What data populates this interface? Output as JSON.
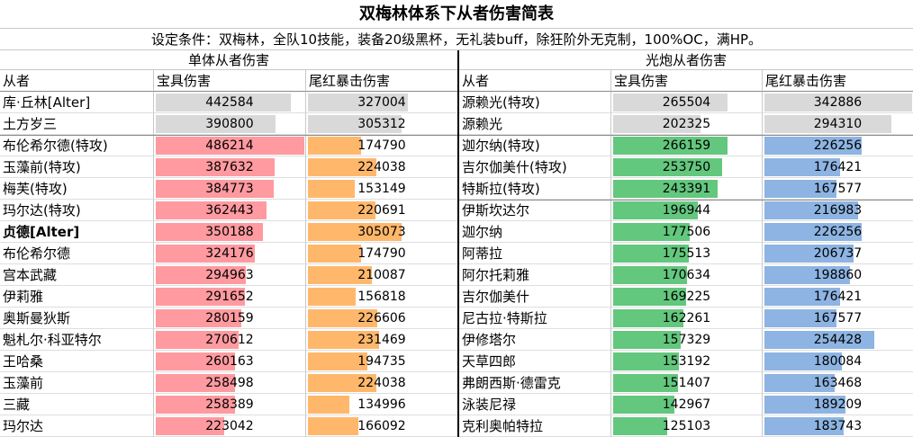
{
  "title": "双梅林体系下从者伤害简表",
  "subtitle": "设定条件：双梅林，全队10技能，装备20级黑杯，无礼装buff，除狂阶外无克制，100%OC，满HP。",
  "colors": {
    "gray": "#d9d9d9",
    "pink": "#ff9aa0",
    "orange": "#ffb86b",
    "green": "#63c77e",
    "blue": "#8db4e2"
  },
  "left": {
    "group_title": "单体从者伤害",
    "headers": [
      "从者",
      "宝具伤害",
      "尾红暴击伤害"
    ],
    "rows": [
      {
        "name": "库·丘林[Alter]",
        "np": 442584,
        "crit": 327004,
        "np_color": "gray",
        "crit_color": "gray",
        "bold": false
      },
      {
        "name": "土方岁三",
        "np": 390800,
        "crit": 305312,
        "np_color": "gray",
        "crit_color": "gray",
        "bold": false
      },
      {
        "name": "布伦希尔德(特攻)",
        "np": 486214,
        "crit": 174790,
        "np_color": "pink",
        "crit_color": "orange",
        "bold": false
      },
      {
        "name": "玉藻前(特攻)",
        "np": 387632,
        "crit": 224038,
        "np_color": "pink",
        "crit_color": "orange",
        "bold": false
      },
      {
        "name": "梅芙(特攻)",
        "np": 384773,
        "crit": 153149,
        "np_color": "pink",
        "crit_color": "orange",
        "bold": false
      },
      {
        "name": "玛尔达(特攻)",
        "np": 362443,
        "crit": 220691,
        "np_color": "pink",
        "crit_color": "orange",
        "bold": false
      },
      {
        "name": "贞德[Alter]",
        "np": 350188,
        "crit": 305073,
        "np_color": "pink",
        "crit_color": "orange",
        "bold": true
      },
      {
        "name": "布伦希尔德",
        "np": 324176,
        "crit": 174790,
        "np_color": "pink",
        "crit_color": "orange",
        "bold": false
      },
      {
        "name": "宫本武藏",
        "np": 294963,
        "crit": 210087,
        "np_color": "pink",
        "crit_color": "orange",
        "bold": false
      },
      {
        "name": "伊莉雅",
        "np": 291652,
        "crit": 156818,
        "np_color": "pink",
        "crit_color": "orange",
        "bold": false
      },
      {
        "name": "奥斯曼狄斯",
        "np": 280159,
        "crit": 226606,
        "np_color": "pink",
        "crit_color": "orange",
        "bold": false
      },
      {
        "name": "魁札尔·科亚特尔",
        "np": 270612,
        "crit": 231469,
        "np_color": "pink",
        "crit_color": "orange",
        "bold": false
      },
      {
        "name": "王哈桑",
        "np": 260163,
        "crit": 194735,
        "np_color": "pink",
        "crit_color": "orange",
        "bold": false
      },
      {
        "name": "玉藻前",
        "np": 258498,
        "crit": 224038,
        "np_color": "pink",
        "crit_color": "orange",
        "bold": false
      },
      {
        "name": "三藏",
        "np": 258389,
        "crit": 134996,
        "np_color": "pink",
        "crit_color": "orange",
        "bold": false
      },
      {
        "name": "玛尔达",
        "np": 223042,
        "crit": 166092,
        "np_color": "pink",
        "crit_color": "orange",
        "bold": false
      }
    ]
  },
  "right": {
    "group_title": "光炮从者伤害",
    "headers": [
      "从者",
      "宝具伤害",
      "尾红暴击伤害"
    ],
    "rows": [
      {
        "name": "源赖光(特攻)",
        "np": 265504,
        "crit": 342886,
        "np_color": "gray",
        "crit_color": "gray"
      },
      {
        "name": "源赖光",
        "np": 202325,
        "crit": 294310,
        "np_color": "gray",
        "crit_color": "gray"
      },
      {
        "name": "迦尔纳(特攻)",
        "np": 266159,
        "crit": 226256,
        "np_color": "green",
        "crit_color": "blue"
      },
      {
        "name": "吉尔伽美什(特攻)",
        "np": 253750,
        "crit": 176421,
        "np_color": "green",
        "crit_color": "blue"
      },
      {
        "name": "特斯拉(特攻)",
        "np": 243391,
        "crit": 167577,
        "np_color": "green",
        "crit_color": "blue"
      },
      {
        "name": "伊斯坎达尔",
        "np": 196944,
        "crit": 216983,
        "np_color": "green",
        "crit_color": "blue"
      },
      {
        "name": "迦尔纳",
        "np": 177506,
        "crit": 226256,
        "np_color": "green",
        "crit_color": "blue"
      },
      {
        "name": "阿蒂拉",
        "np": 175513,
        "crit": 206737,
        "np_color": "green",
        "crit_color": "blue"
      },
      {
        "name": "阿尔托莉雅",
        "np": 170634,
        "crit": 198860,
        "np_color": "green",
        "crit_color": "blue"
      },
      {
        "name": "吉尔伽美什",
        "np": 169225,
        "crit": 176421,
        "np_color": "green",
        "crit_color": "blue"
      },
      {
        "name": "尼古拉·特斯拉",
        "np": 162261,
        "crit": 167577,
        "np_color": "green",
        "crit_color": "blue"
      },
      {
        "name": "伊修塔尔",
        "np": 157329,
        "crit": 254428,
        "np_color": "green",
        "crit_color": "blue"
      },
      {
        "name": "天草四郎",
        "np": 153192,
        "crit": 180084,
        "np_color": "green",
        "crit_color": "blue"
      },
      {
        "name": "弗朗西斯·德雷克",
        "np": 151407,
        "crit": 163468,
        "np_color": "green",
        "crit_color": "blue"
      },
      {
        "name": "泳装尼禄",
        "np": 142967,
        "crit": 189209,
        "np_color": "green",
        "crit_color": "blue"
      },
      {
        "name": "克利奥帕特拉",
        "np": 125103,
        "crit": 183743,
        "np_color": "green",
        "crit_color": "blue"
      }
    ]
  }
}
